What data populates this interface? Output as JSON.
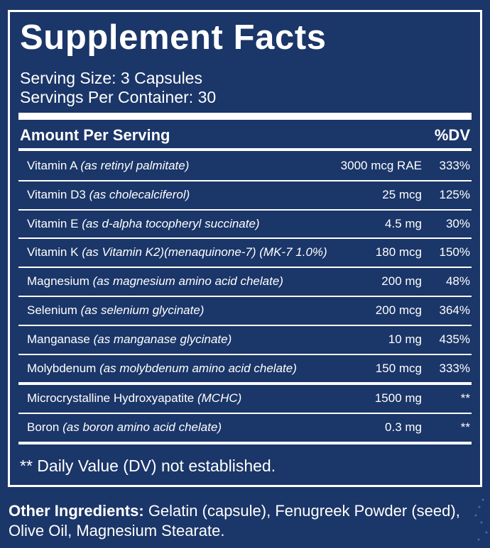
{
  "title": "Supplement Facts",
  "serving_size": "Serving Size: 3 Capsules",
  "servings_per_container": "Servings Per Container: 30",
  "header": {
    "amount": "Amount Per Serving",
    "dv": "%DV"
  },
  "nutrients": [
    {
      "name": "Vitamin A",
      "form": "(as retinyl palmitate)",
      "amount": "3000 mcg RAE",
      "dv": "333%"
    },
    {
      "name": "Vitamin D3",
      "form": "(as cholecalciferol)",
      "amount": "25 mcg",
      "dv": "125%"
    },
    {
      "name": "Vitamin E",
      "form": "(as d-alpha tocopheryl succinate)",
      "amount": "4.5 mg",
      "dv": "30%"
    },
    {
      "name": "Vitamin K",
      "form": "(as Vitamin K2)(menaquinone-7) (MK-7 1.0%)",
      "amount": "180 mcg",
      "dv": "150%"
    },
    {
      "name": "Magnesium",
      "form": "(as magnesium amino acid chelate)",
      "amount": "200 mg",
      "dv": "48%"
    },
    {
      "name": "Selenium",
      "form": "(as selenium glycinate)",
      "amount": "200 mcg",
      "dv": "364%"
    },
    {
      "name": "Manganase",
      "form": "(as manganase glycinate)",
      "amount": "10 mg",
      "dv": "435%"
    },
    {
      "name": "Molybdenum",
      "form": "(as molybdenum amino acid chelate)",
      "amount": "150 mcg",
      "dv": "333%"
    }
  ],
  "other_nutrients": [
    {
      "name": "Microcrystalline Hydroxyapatite",
      "form": "(MCHC)",
      "amount": "1500 mg",
      "dv": "**"
    },
    {
      "name": "Boron",
      "form": "(as boron amino acid chelate)",
      "amount": "0.3 mg",
      "dv": "**"
    }
  ],
  "footnote": "** Daily Value (DV) not established.",
  "other_ingredients": {
    "label": "Other Ingredients:",
    "text": "Gelatin (capsule), Fenugreek Powder (seed), Olive Oil, Magnesium Stearate."
  },
  "colors": {
    "background": "#1b3668",
    "text": "#ffffff"
  }
}
